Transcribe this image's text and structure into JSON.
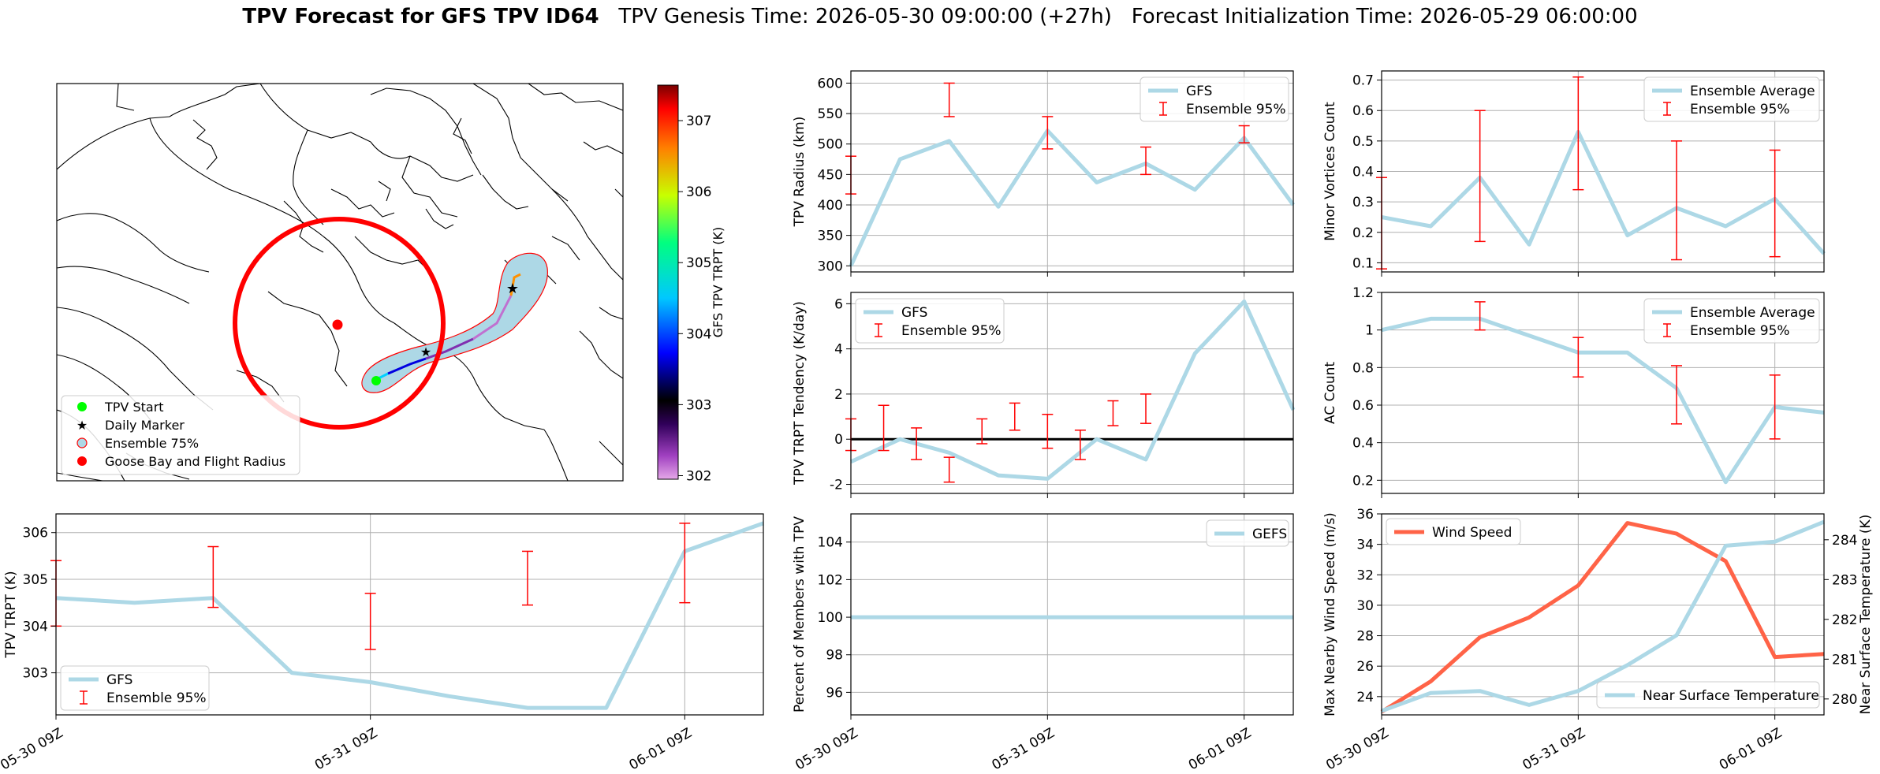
{
  "title": {
    "bold": "TPV Forecast for GFS TPV ID64",
    "genesis": "TPV Genesis Time: 2026-05-30 09:00:00 (+27h)",
    "init": "Forecast Initialization Time: 2026-05-29 06:00:00"
  },
  "x_ticks": [
    "05-30 09Z",
    "05-31 09Z",
    "06-01 09Z"
  ],
  "map": {
    "legend": [
      "TPV Start",
      "Daily Marker",
      "Ensemble 75%",
      "Goose Bay and Flight Radius"
    ],
    "colorbar": {
      "label": "GFS TPV TRPT (K)",
      "ticks": [
        "302",
        "303",
        "304",
        "305",
        "306",
        "307"
      ]
    },
    "colors": {
      "start": "#00ff00",
      "daily": "#ff00ff",
      "ensemble_fill": "#add8e6",
      "ensemble_edge": "#ff0000",
      "goose_bay": "#ff0000",
      "radius": "#ff0000"
    }
  },
  "chart_data": [
    {
      "id": "radius",
      "type": "line",
      "ylabel": "TPV Radius (km)",
      "ylim": [
        290,
        620
      ],
      "yticks": [
        300,
        350,
        400,
        450,
        500,
        550,
        600
      ],
      "x": [
        0,
        6,
        12,
        18,
        24,
        30,
        36,
        42,
        48,
        54
      ],
      "series": [
        {
          "name": "GFS",
          "color": "#add8e6",
          "values": [
            300,
            475,
            505,
            397,
            522,
            437,
            468,
            425,
            510,
            400
          ]
        }
      ],
      "errorbars": {
        "name": "Ensemble 95%",
        "color": "#ff0000",
        "x": [
          0,
          12,
          24,
          36,
          48
        ],
        "low": [
          418,
          545,
          492,
          450,
          502
        ],
        "high": [
          480,
          600,
          545,
          495,
          530
        ]
      },
      "legend": [
        "GFS",
        "Ensemble 95%"
      ],
      "legend_pos": "top-right"
    },
    {
      "id": "minor",
      "type": "line",
      "ylabel": "Minor Vortices Count",
      "ylim": [
        0.07,
        0.73
      ],
      "yticks": [
        0.1,
        0.2,
        0.3,
        0.4,
        0.5,
        0.6,
        0.7
      ],
      "x": [
        0,
        6,
        12,
        18,
        24,
        30,
        36,
        42,
        48,
        54
      ],
      "series": [
        {
          "name": "Ensemble Average",
          "color": "#add8e6",
          "values": [
            0.25,
            0.22,
            0.38,
            0.16,
            0.53,
            0.19,
            0.28,
            0.22,
            0.31,
            0.13
          ]
        }
      ],
      "errorbars": {
        "name": "Ensemble 95%",
        "color": "#ff0000",
        "x": [
          0,
          12,
          24,
          36,
          48
        ],
        "low": [
          0.08,
          0.17,
          0.34,
          0.11,
          0.12
        ],
        "high": [
          0.38,
          0.6,
          0.71,
          0.5,
          0.47
        ]
      },
      "legend": [
        "Ensemble Average",
        "Ensemble 95%"
      ],
      "legend_pos": "top-right"
    },
    {
      "id": "tendency",
      "type": "line",
      "ylabel": "TPV TRPT Tendency (K/day)",
      "ylim": [
        -2.4,
        6.5
      ],
      "yticks": [
        -2,
        0,
        2,
        4,
        6
      ],
      "x": [
        0,
        6,
        12,
        18,
        24,
        30,
        36,
        42,
        48,
        54
      ],
      "hline": 0,
      "series": [
        {
          "name": "GFS",
          "color": "#add8e6",
          "values": [
            -1.0,
            0.0,
            -0.6,
            -1.6,
            -1.75,
            0.0,
            -0.9,
            3.8,
            6.1,
            1.3
          ]
        }
      ],
      "errorbars": {
        "name": "Ensemble 95%",
        "color": "#ff0000",
        "x": [
          0,
          4,
          8,
          12,
          16,
          20,
          24,
          28,
          32,
          36
        ],
        "low": [
          -0.5,
          -0.5,
          -0.9,
          -1.9,
          -0.2,
          0.4,
          -0.4,
          -0.9,
          0.6,
          0.7
        ],
        "high": [
          0.9,
          1.5,
          0.5,
          -0.8,
          0.9,
          1.6,
          1.1,
          0.4,
          1.7,
          2.0
        ]
      },
      "legend": [
        "GFS",
        "Ensemble 95%"
      ],
      "legend_pos": "top-left"
    },
    {
      "id": "ac",
      "type": "line",
      "ylabel": "AC Count",
      "ylim": [
        0.13,
        1.2
      ],
      "yticks": [
        0.2,
        0.4,
        0.6,
        0.8,
        1.0,
        1.2
      ],
      "x": [
        0,
        6,
        12,
        18,
        24,
        30,
        36,
        42,
        48,
        54
      ],
      "series": [
        {
          "name": "Ensemble Average",
          "color": "#add8e6",
          "values": [
            1.0,
            1.06,
            1.06,
            0.97,
            0.88,
            0.88,
            0.69,
            0.19,
            0.59,
            0.56
          ]
        }
      ],
      "errorbars": {
        "name": "Ensemble 95%",
        "color": "#ff0000",
        "x": [
          12,
          24,
          36,
          48
        ],
        "low": [
          1.0,
          0.75,
          0.5,
          0.42
        ],
        "high": [
          1.15,
          0.96,
          0.81,
          0.76
        ]
      },
      "legend": [
        "Ensemble Average",
        "Ensemble 95%"
      ],
      "legend_pos": "top-right"
    },
    {
      "id": "trpt",
      "type": "line",
      "ylabel": "TPV TRPT (K)",
      "ylim": [
        302.1,
        306.4
      ],
      "yticks": [
        303,
        304,
        305,
        306
      ],
      "x": [
        0,
        6,
        12,
        18,
        24,
        30,
        36,
        42,
        48,
        54
      ],
      "series": [
        {
          "name": "GFS",
          "color": "#add8e6",
          "values": [
            304.6,
            304.5,
            304.6,
            303.0,
            302.8,
            302.5,
            302.25,
            302.25,
            305.6,
            306.2
          ]
        }
      ],
      "errorbars": {
        "name": "Ensemble 95%",
        "color": "#ff0000",
        "x": [
          0,
          12,
          24,
          36,
          48
        ],
        "low": [
          304.0,
          304.4,
          303.5,
          304.45,
          304.5
        ],
        "high": [
          305.4,
          305.7,
          304.7,
          305.6,
          306.2
        ]
      },
      "legend": [
        "GFS",
        "Ensemble 95%"
      ],
      "legend_pos": "bottom-left"
    },
    {
      "id": "percent",
      "type": "line",
      "ylabel": "Percent of Members with TPV",
      "ylim": [
        94.8,
        105.5
      ],
      "yticks": [
        96,
        98,
        100,
        102,
        104
      ],
      "x": [
        0,
        54
      ],
      "series": [
        {
          "name": "GEFS",
          "color": "#add8e6",
          "values": [
            100,
            100
          ]
        }
      ],
      "legend": [
        "GEFS"
      ],
      "legend_pos": "top-right"
    },
    {
      "id": "wind",
      "type": "line",
      "ylabel": "Max Nearby Wind Speed (m/s)",
      "ylabel_right": "Near Surface Temperature (K)",
      "ylim": [
        22.8,
        36
      ],
      "yticks": [
        24,
        26,
        28,
        30,
        32,
        34,
        36
      ],
      "ylim_right": [
        279.6,
        284.65
      ],
      "yticks_right": [
        280,
        281,
        282,
        283,
        284
      ],
      "x": [
        0,
        6,
        12,
        18,
        24,
        30,
        36,
        42,
        48,
        54
      ],
      "series": [
        {
          "name": "Wind Speed",
          "color": "#ff6347",
          "axis": "left",
          "values": [
            23.0,
            25.0,
            27.9,
            29.2,
            31.3,
            35.4,
            34.7,
            32.9,
            26.6,
            26.8
          ]
        },
        {
          "name": "Near Surface Temperature",
          "color": "#add8e6",
          "axis": "right",
          "values": [
            279.7,
            280.15,
            280.2,
            279.85,
            280.2,
            280.85,
            281.6,
            283.85,
            283.95,
            284.45
          ]
        }
      ],
      "legend": [
        "Wind Speed",
        "Near Surface Temperature"
      ],
      "legend_pos": "top-left / bottom-right"
    }
  ]
}
